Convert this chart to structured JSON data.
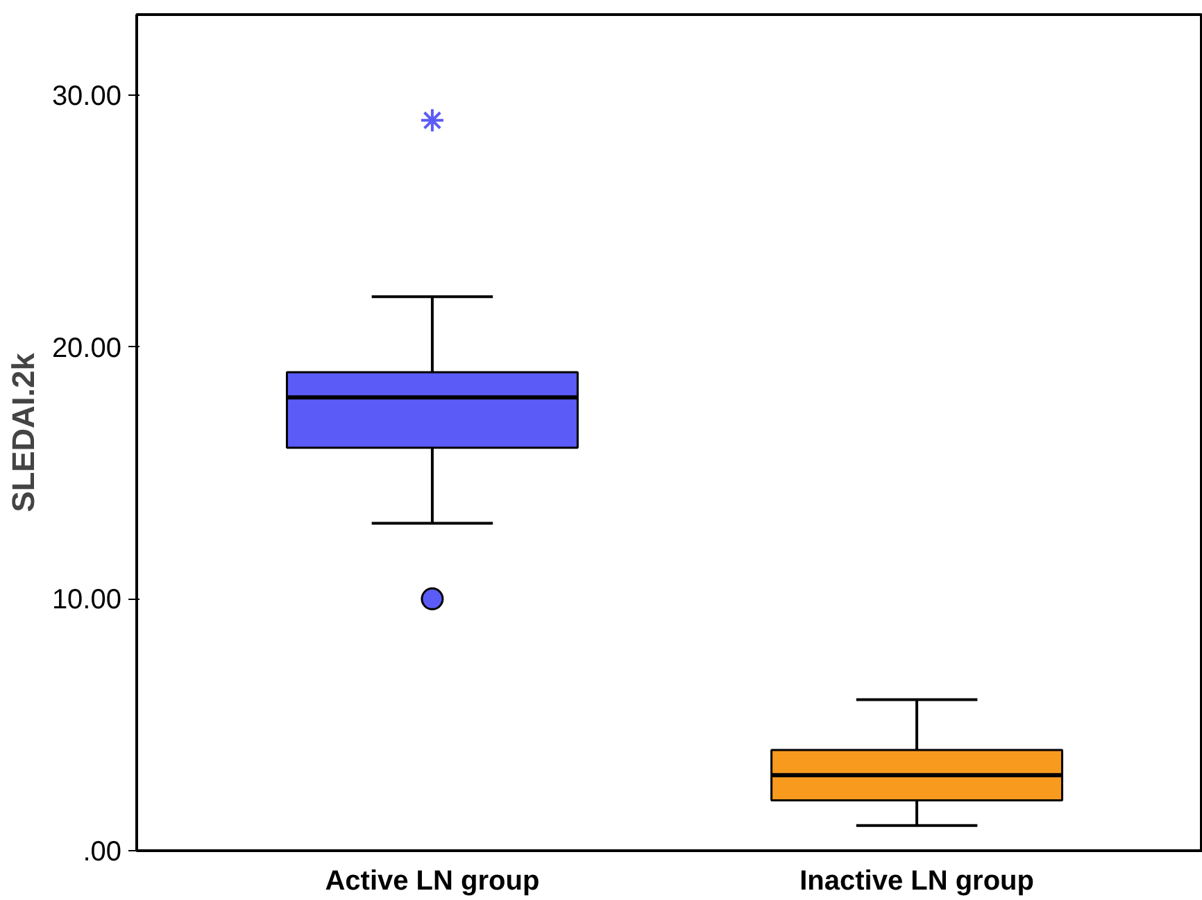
{
  "chart_data": {
    "type": "box",
    "ylabel": "SLEDAI.2k",
    "categories": [
      "Active LN group",
      "Inactive LN group"
    ],
    "colors": [
      "#5b5bf7",
      "#f79a1e"
    ],
    "boxes": [
      {
        "low": 13,
        "q1": 16,
        "median": 18,
        "q3": 19,
        "high": 22,
        "outliers": [
          10,
          29
        ]
      },
      {
        "low": 1,
        "q1": 2,
        "median": 3,
        "q3": 4,
        "high": 6
      }
    ],
    "ylim": [
      0,
      33.2
    ],
    "yticks": [
      {
        "value": 0,
        "label": ".00"
      },
      {
        "value": 10,
        "label": "10.00"
      },
      {
        "value": 20,
        "label": "20.00"
      },
      {
        "value": 30,
        "label": "30.00"
      }
    ],
    "grid": false
  }
}
